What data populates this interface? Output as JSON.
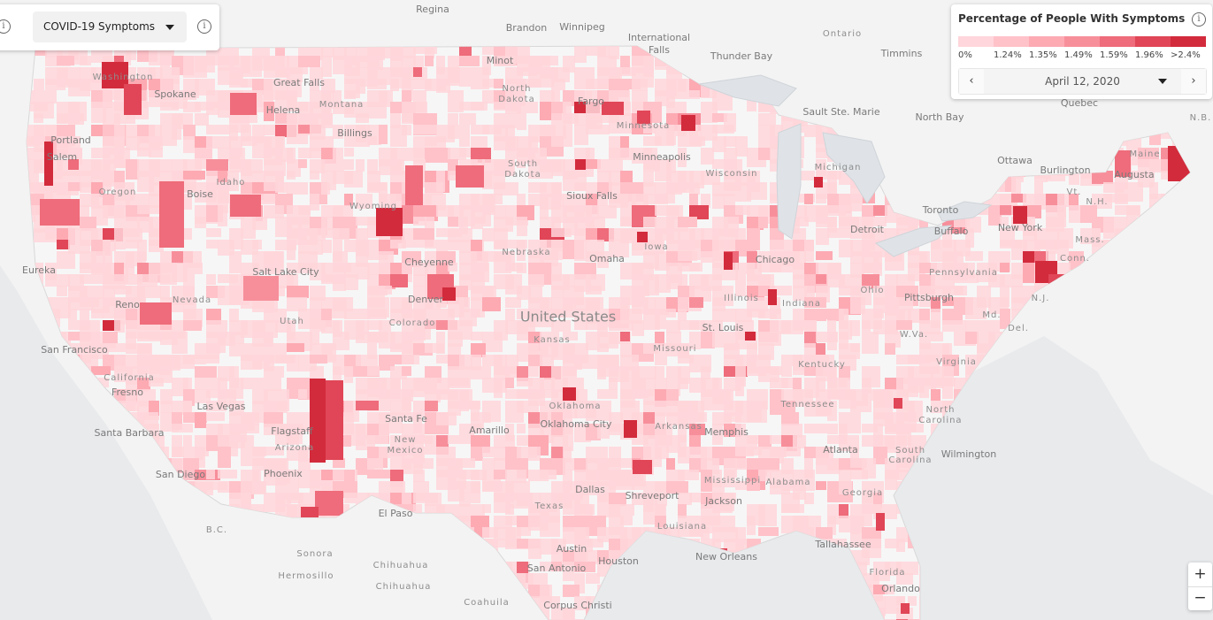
{
  "toolbar": {
    "layer": "COVID-19 Symptoms"
  },
  "legend": {
    "title": "Percentage of People With Symptoms",
    "scale": [
      {
        "label": "0%",
        "color": "#ffd6db"
      },
      {
        "label": "1.24%",
        "color": "#ffc2c9"
      },
      {
        "label": "1.35%",
        "color": "#fdaab3"
      },
      {
        "label": "1.49%",
        "color": "#f78f9b"
      },
      {
        "label": "1.59%",
        "color": "#ee6c7b"
      },
      {
        "label": "1.96%",
        "color": "#e04657"
      },
      {
        "label": ">2.4%",
        "color": "#d22b3c"
      }
    ],
    "date": "April 12, 2020"
  },
  "zoom": {
    "in": "+",
    "out": "−"
  },
  "map": {
    "country": "United States",
    "cities": [
      "Regina",
      "Brandon",
      "Winnipeg",
      "International",
      "Falls",
      "Thunder Bay",
      "Timmins",
      "Minot",
      "Great Falls",
      "Spokane",
      "Helena",
      "Billings",
      "Fargo",
      "Sault Ste. Marie",
      "North Bay",
      "Quebec",
      "Portland",
      "Salem",
      "Boise",
      "Minneapolis",
      "Ottawa",
      "Burlington",
      "Augusta",
      "Sioux Falls",
      "Toronto",
      "Detroit",
      "Buffalo",
      "New York",
      "Omaha",
      "Chicago",
      "Cheyenne",
      "Salt Lake City",
      "Eureka",
      "Pittsburgh",
      "Reno",
      "Denver",
      "St. Louis",
      "San Francisco",
      "Fresno",
      "Las Vegas",
      "Santa Fe",
      "Santa Barbara",
      "Flagstaff",
      "Amarillo",
      "Oklahoma City",
      "Memphis",
      "Atlanta",
      "Wilmington",
      "San Diego",
      "Phoenix",
      "Dallas",
      "Shreveport",
      "El Paso",
      "Jackson",
      "Tallahassee",
      "Austin",
      "New Orleans",
      "Houston",
      "San Antonio",
      "Orlando",
      "Corpus Christi"
    ],
    "regions": [
      "Ontario",
      "North",
      "Dakota",
      "Montana",
      "Minnesota",
      "N.B.",
      "Washington",
      "Idaho",
      "Oregon",
      "South",
      "Dakota",
      "Wisconsin",
      "Michigan",
      "Maine",
      "Vt.",
      "N.H.",
      "Wyoming",
      "Mass.",
      "Conn.",
      "Iowa",
      "Nebraska",
      "Pennsylvania",
      "N.J.",
      "Illinois",
      "Indiana",
      "Ohio",
      "Nevada",
      "Utah",
      "Colorado",
      "Md.",
      "Del.",
      "Kansas",
      "W.Va.",
      "Missouri",
      "Kentucky",
      "Virginia",
      "California",
      "Tennessee",
      "Oklahoma",
      "North",
      "Carolina",
      "New",
      "Mexico",
      "Arizona",
      "Arkansas",
      "South",
      "Carolina",
      "Mississippi",
      "Alabama",
      "Georgia",
      "Texas",
      "Louisiana",
      "B.C.",
      "Sonora",
      "Chihuahua",
      "Hermosillo",
      "Chihuahua",
      "Coahuila",
      "Florida"
    ]
  }
}
